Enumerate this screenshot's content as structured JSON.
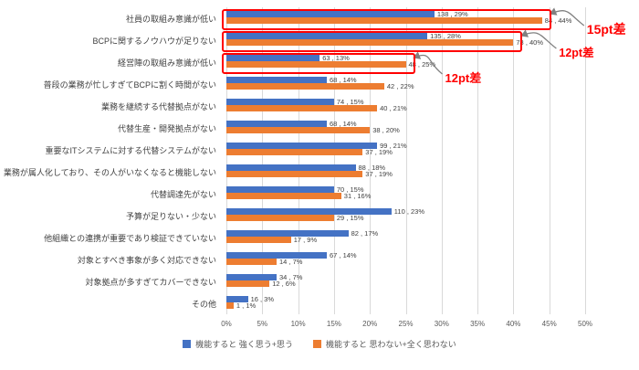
{
  "chart_data": {
    "type": "bar",
    "orientation": "horizontal",
    "title": "",
    "categories": [
      "社員の取組み意識が低い",
      "BCPに関するノウハウが足りない",
      "経営陣の取組み意識が低い",
      "普段の業務が忙しすぎてBCPに割く時間がない",
      "業務を継続する代替拠点がない",
      "代替生産・開発拠点がない",
      "重要なITシステムに対する代替システムがない",
      "業務が属人化しており、その人がいなくなると機能しない",
      "代替調達先がない",
      "予算が足りない・少ない",
      "他組織との連携が重要であり検証できていない",
      "対象とすべき事象が多く対応できない",
      "対象拠点が多すぎてカバーできない",
      "その他"
    ],
    "series": [
      {
        "name": "機能すると 強く思う+思う",
        "color": "#4472C4",
        "counts": [
          138,
          135,
          63,
          68,
          74,
          68,
          99,
          88,
          70,
          110,
          82,
          67,
          34,
          16
        ],
        "percents": [
          29,
          28,
          13,
          14,
          15,
          14,
          21,
          18,
          15,
          23,
          17,
          14,
          7,
          3
        ]
      },
      {
        "name": "機能すると 思わない+全く思わない",
        "color": "#ED7D31",
        "counts": [
          84,
          78,
          48,
          42,
          40,
          38,
          37,
          37,
          31,
          29,
          17,
          14,
          12,
          1
        ],
        "percents": [
          44,
          40,
          25,
          22,
          21,
          20,
          19,
          19,
          16,
          15,
          9,
          7,
          6,
          1
        ]
      }
    ],
    "xlim": [
      0,
      50
    ],
    "x_ticks": [
      "0%",
      "5%",
      "10%",
      "15%",
      "20%",
      "25%",
      "30%",
      "35%",
      "40%",
      "45%",
      "50%"
    ],
    "label_format": "{count} , {percent}%",
    "grid": true,
    "legend_position": "bottom",
    "annotations": [
      {
        "text": "15pt差",
        "row": 0
      },
      {
        "text": "12pt差",
        "row": 1
      },
      {
        "text": "12pt差",
        "row": 2
      }
    ],
    "colors": {
      "highlight": "#FF0000",
      "gridline": "#D9D9D9",
      "arrow": "#808080",
      "label_text": "#404040",
      "axis_text": "#595959"
    }
  }
}
